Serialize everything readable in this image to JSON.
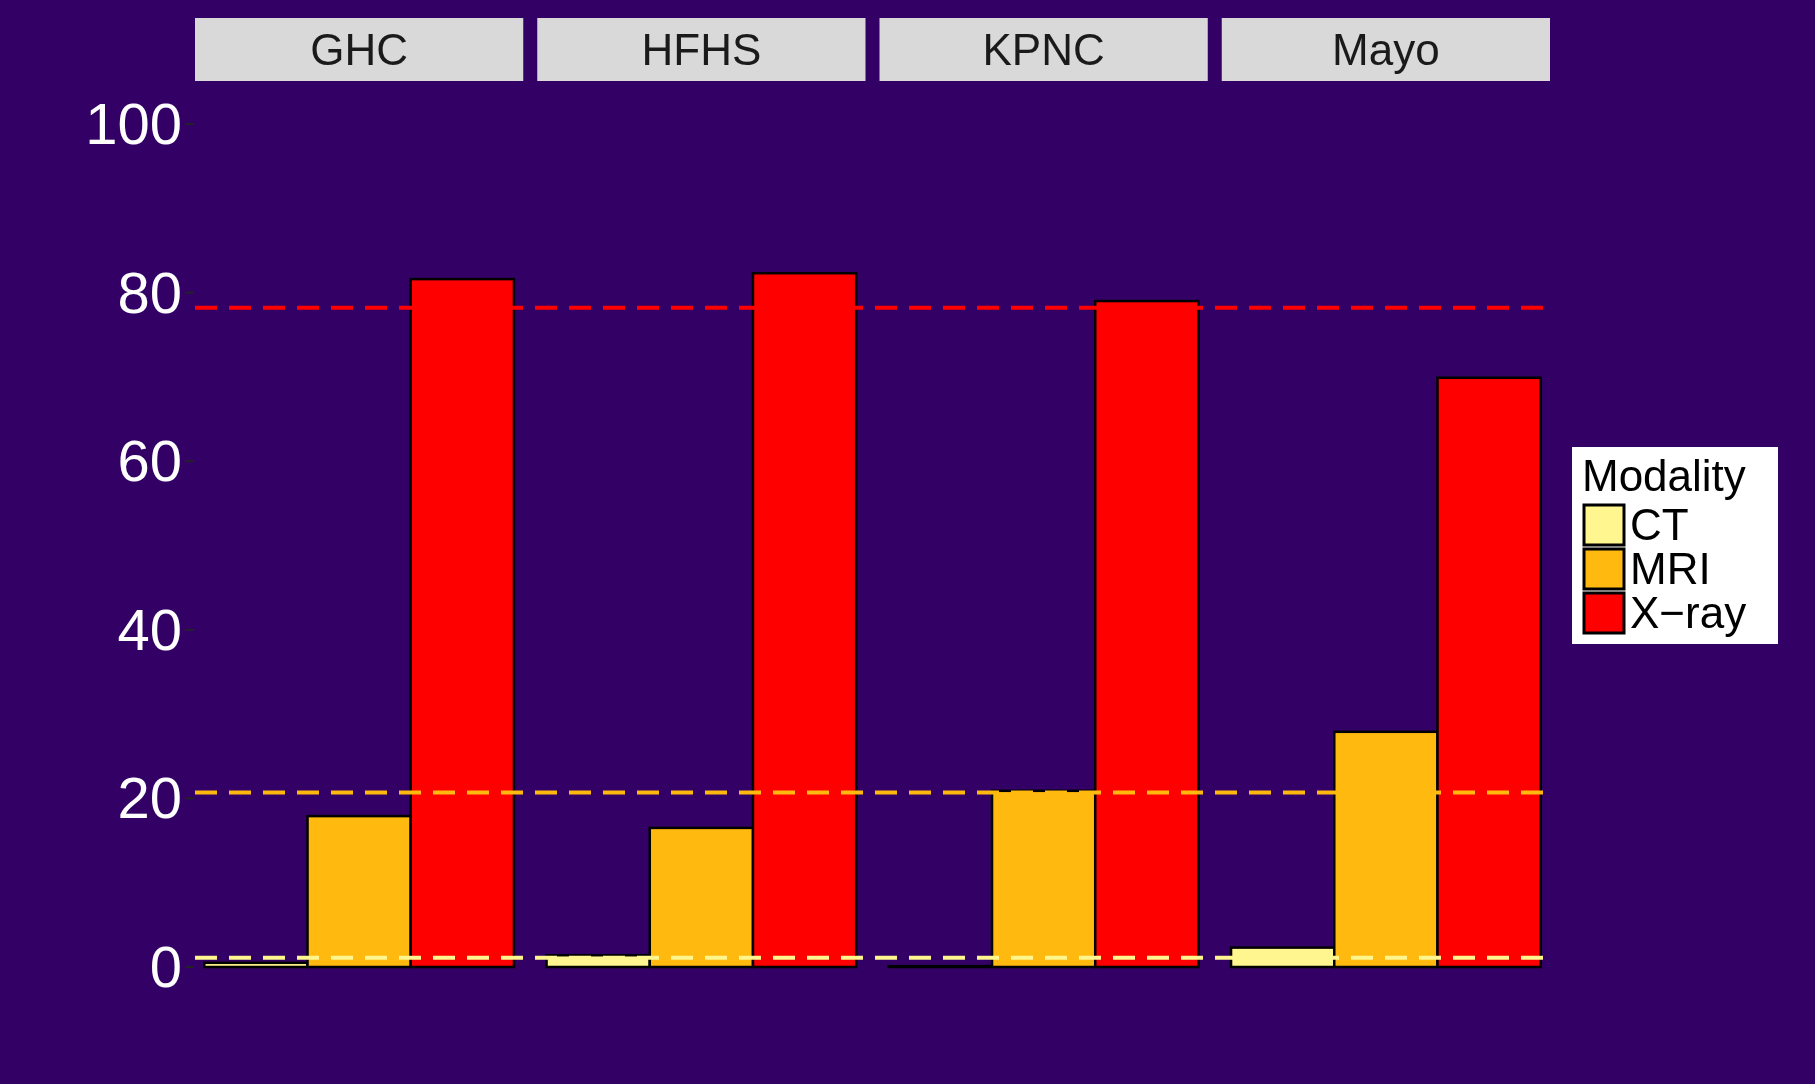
{
  "chart_data": {
    "type": "bar",
    "categories": [
      "GHC",
      "HFHS",
      "KPNC",
      "Mayo"
    ],
    "series": [
      {
        "name": "CT",
        "color": "#fff68f",
        "values": [
          0.5,
          1.4,
          0.1,
          2.3
        ]
      },
      {
        "name": "MRI",
        "color": "#ffb90f",
        "values": [
          17.9,
          16.5,
          20.9,
          27.9
        ]
      },
      {
        "name": "X−ray",
        "color": "#ff0000",
        "values": [
          81.6,
          82.3,
          79.0,
          69.9
        ]
      }
    ],
    "ylim": [
      0,
      100
    ],
    "yticks": [
      0,
      20,
      40,
      60,
      80,
      100
    ],
    "grid": false,
    "legend": "right",
    "legend_title": "Modality",
    "ref_lines": [
      {
        "axis": "y",
        "value": 78.2,
        "color": "#ff0000",
        "line_style": "dashed"
      },
      {
        "axis": "y",
        "value": 20.7,
        "color": "#ffb90f",
        "line_style": "dashed"
      },
      {
        "axis": "y",
        "value": 1.1,
        "color": "#fff68f",
        "line_style": "dashed"
      }
    ]
  }
}
